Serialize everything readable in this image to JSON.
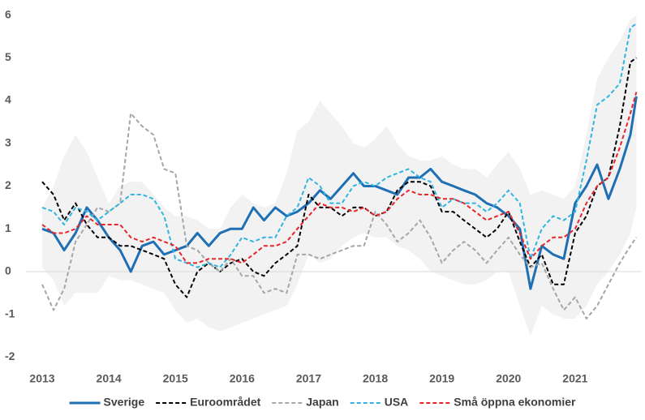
{
  "chart_data": {
    "type": "line",
    "x": [
      2013,
      2013.17,
      2013.33,
      2013.5,
      2013.67,
      2013.83,
      2014,
      2014.17,
      2014.33,
      2014.5,
      2014.67,
      2014.83,
      2015,
      2015.17,
      2015.33,
      2015.5,
      2015.67,
      2015.83,
      2016,
      2016.17,
      2016.33,
      2016.5,
      2016.67,
      2016.83,
      2017,
      2017.17,
      2017.33,
      2017.5,
      2017.67,
      2017.83,
      2018,
      2018.17,
      2018.33,
      2018.5,
      2018.67,
      2018.83,
      2019,
      2019.17,
      2019.33,
      2019.5,
      2019.67,
      2019.83,
      2020,
      2020.17,
      2020.33,
      2020.5,
      2020.67,
      2020.83,
      2021,
      2021.17,
      2021.33,
      2021.5,
      2021.67,
      2021.83,
      2021.92
    ],
    "series": [
      {
        "name": "Sverige",
        "color": "#1f6fb4",
        "dash": false,
        "values": [
          1.0,
          0.9,
          0.5,
          0.9,
          1.5,
          1.2,
          0.8,
          0.5,
          0.0,
          0.6,
          0.7,
          0.4,
          0.5,
          0.6,
          0.9,
          0.6,
          0.9,
          1.0,
          1.0,
          1.5,
          1.2,
          1.5,
          1.3,
          1.4,
          1.6,
          1.9,
          1.7,
          2.0,
          2.3,
          2.0,
          2.0,
          1.9,
          1.8,
          2.2,
          2.2,
          2.4,
          2.1,
          2.0,
          1.9,
          1.8,
          1.6,
          1.5,
          1.3,
          1.0,
          -0.4,
          0.6,
          0.4,
          0.3,
          1.6,
          2.0,
          2.5,
          1.7,
          2.4,
          3.2,
          4.1
        ]
      },
      {
        "name": "Euroområdet",
        "color": "#000000",
        "dash": true,
        "values": [
          2.1,
          1.8,
          1.2,
          1.6,
          1.1,
          0.8,
          0.8,
          0.6,
          0.6,
          0.5,
          0.4,
          0.3,
          -0.3,
          -0.6,
          0.0,
          0.2,
          0.0,
          0.2,
          0.3,
          0.0,
          -0.1,
          0.2,
          0.4,
          0.6,
          1.8,
          1.5,
          1.5,
          1.3,
          1.5,
          1.5,
          1.3,
          1.4,
          1.9,
          2.1,
          2.1,
          2.0,
          1.4,
          1.4,
          1.2,
          1.0,
          0.8,
          1.0,
          1.4,
          0.7,
          0.1,
          0.4,
          -0.3,
          -0.3,
          0.9,
          1.3,
          2.0,
          2.2,
          3.4,
          4.9,
          5.0
        ]
      },
      {
        "name": "Japan",
        "color": "#a6a6a6",
        "dash": true,
        "values": [
          -0.3,
          -0.9,
          -0.4,
          0.7,
          1.1,
          1.5,
          1.4,
          1.6,
          3.7,
          3.4,
          3.2,
          2.4,
          2.3,
          0.6,
          0.5,
          0.2,
          0.0,
          0.3,
          -0.1,
          -0.1,
          -0.5,
          -0.4,
          -0.5,
          0.4,
          0.4,
          0.3,
          0.4,
          0.5,
          0.6,
          0.6,
          1.4,
          1.1,
          0.7,
          0.9,
          1.2,
          0.8,
          0.2,
          0.5,
          0.7,
          0.5,
          0.2,
          0.5,
          0.8,
          0.4,
          0.1,
          0.2,
          -0.4,
          -0.9,
          -0.6,
          -1.1,
          -0.8,
          -0.3,
          0.2,
          0.6,
          0.8
        ]
      },
      {
        "name": "USA",
        "color": "#2fb5e0",
        "dash": true,
        "values": [
          1.5,
          1.4,
          1.1,
          1.5,
          1.4,
          1.2,
          1.4,
          1.6,
          1.8,
          1.8,
          1.7,
          1.3,
          0.3,
          0.2,
          0.1,
          0.2,
          0.1,
          0.4,
          0.8,
          0.7,
          0.8,
          0.8,
          1.3,
          1.5,
          2.2,
          2.0,
          1.6,
          1.6,
          2.0,
          2.1,
          2.0,
          2.2,
          2.3,
          2.4,
          2.2,
          2.1,
          1.5,
          1.7,
          1.6,
          1.6,
          1.4,
          1.6,
          1.9,
          1.6,
          0.3,
          1.0,
          1.3,
          1.2,
          1.4,
          2.6,
          3.9,
          4.1,
          4.4,
          5.7,
          5.8
        ]
      },
      {
        "name": "Små öppna ekonomier",
        "color": "#e8262a",
        "dash": true,
        "values": [
          1.1,
          0.9,
          0.9,
          1.0,
          1.3,
          1.1,
          1.1,
          1.1,
          0.8,
          0.7,
          0.8,
          0.7,
          0.6,
          0.2,
          0.2,
          0.3,
          0.3,
          0.3,
          0.2,
          0.4,
          0.6,
          0.6,
          0.7,
          1.0,
          1.3,
          1.6,
          1.5,
          1.5,
          1.4,
          1.5,
          1.3,
          1.4,
          1.7,
          1.9,
          1.8,
          1.8,
          1.7,
          1.7,
          1.6,
          1.4,
          1.2,
          1.3,
          1.4,
          0.9,
          0.3,
          0.6,
          0.8,
          0.8,
          1.0,
          1.6,
          2.0,
          2.2,
          2.9,
          3.7,
          4.2
        ]
      }
    ],
    "band": {
      "color": "#f2f2f2",
      "upper": [
        1.5,
        2.0,
        2.7,
        3.2,
        2.8,
        2.2,
        1.6,
        2.0,
        2.1,
        2.1,
        1.8,
        1.5,
        1.3,
        1.3,
        1.2,
        1.0,
        1.0,
        1.5,
        1.8,
        1.6,
        1.5,
        1.6,
        2.3,
        3.3,
        3.5,
        4.0,
        3.7,
        3.4,
        3.0,
        2.9,
        3.1,
        3.4,
        3.0,
        2.7,
        2.6,
        2.6,
        2.7,
        2.5,
        2.4,
        2.4,
        2.2,
        2.5,
        2.8,
        2.4,
        1.8,
        1.9,
        1.8,
        1.7,
        2.0,
        3.2,
        4.5,
        5.0,
        5.4,
        5.9,
        6.0
      ],
      "lower": [
        0.1,
        -0.2,
        -0.8,
        -0.5,
        -0.5,
        -0.5,
        -0.1,
        -0.2,
        -0.2,
        -0.3,
        -0.4,
        -0.5,
        -0.9,
        -1.2,
        -1.1,
        -1.3,
        -1.4,
        -1.3,
        -1.2,
        -1.1,
        -1.0,
        -0.9,
        -0.8,
        -0.3,
        0.4,
        0.2,
        0.3,
        0.6,
        0.8,
        0.9,
        0.8,
        0.8,
        0.6,
        0.5,
        0.3,
        0.0,
        -0.1,
        -0.2,
        -0.3,
        -0.3,
        -0.2,
        0.0,
        0.0,
        -0.8,
        -1.5,
        -0.8,
        -1.0,
        -1.1,
        -1.1,
        -0.8,
        -0.3,
        0.0,
        0.4,
        0.9,
        1.5
      ]
    },
    "xlim": [
      2013,
      2022
    ],
    "xticks": [
      2013,
      2014,
      2015,
      2016,
      2017,
      2018,
      2019,
      2020,
      2021
    ],
    "ylim": [
      -2.2,
      6.2
    ],
    "yticks": [
      -2,
      -1,
      0,
      1,
      2,
      3,
      4,
      5,
      6
    ],
    "legend": "bottom"
  }
}
